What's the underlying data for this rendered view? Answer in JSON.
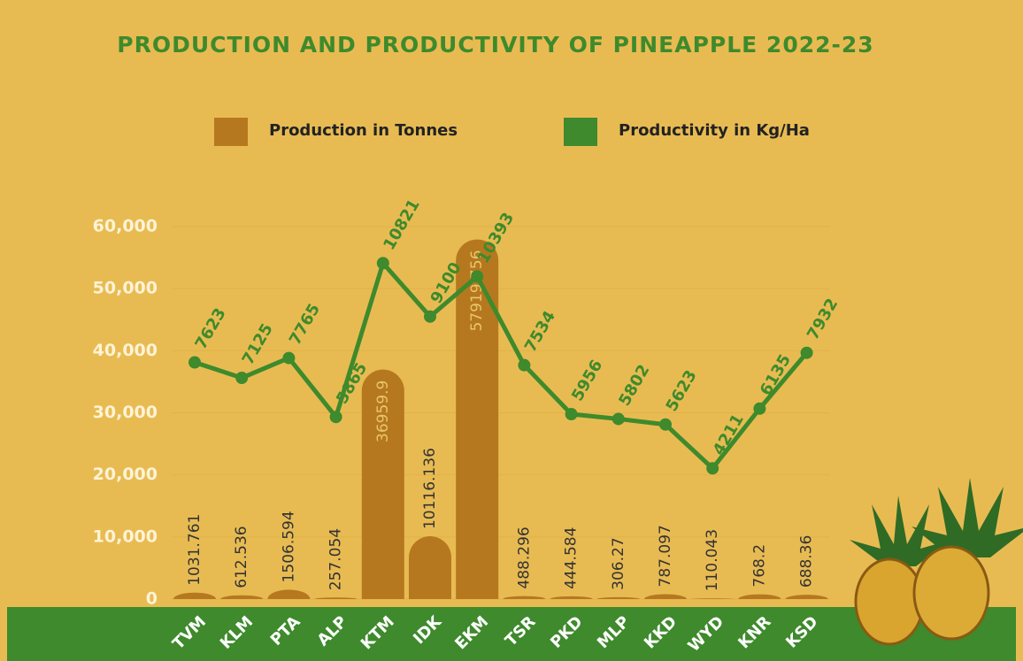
{
  "chart_data": {
    "type": "bar",
    "title": "PRODUCTION AND PRODUCTIVITY OF PINEAPPLE 2022-23",
    "categories": [
      "TVM",
      "KLM",
      "PTA",
      "ALP",
      "KTM",
      "IDK",
      "EKM",
      "TSR",
      "PKD",
      "MLP",
      "KKD",
      "WYD",
      "KNR",
      "KSD"
    ],
    "series": [
      {
        "name": "Production in Tonnes",
        "type": "bar",
        "color": "#b5781f",
        "values": [
          1031.761,
          612.536,
          1506.594,
          257.054,
          36959.9,
          10116.136,
          57919.756,
          488.296,
          444.584,
          306.27,
          787.097,
          110.043,
          768.2,
          688.36
        ]
      },
      {
        "name": "Productivity in Kg/Ha",
        "type": "line",
        "axis": "y2",
        "color": "#3e8a2c",
        "values": [
          7623,
          7125,
          7765,
          5865,
          10821,
          9100,
          10393,
          7534,
          5956,
          5802,
          5623,
          4211,
          6135,
          7932
        ]
      }
    ],
    "ylim": [
      0,
      60000
    ],
    "yticks": [
      0,
      {
        "value": 10000,
        "label": "10,000"
      },
      {
        "value": 20000,
        "label": "20,000"
      },
      {
        "value": 30000,
        "label": "30,000"
      },
      {
        "value": 40000,
        "label": "40,000"
      },
      {
        "value": 50000,
        "label": "50,000"
      },
      {
        "value": 60000,
        "label": "60,000"
      }
    ],
    "y2lim": [
      0,
      12000
    ],
    "grid": true
  }
}
